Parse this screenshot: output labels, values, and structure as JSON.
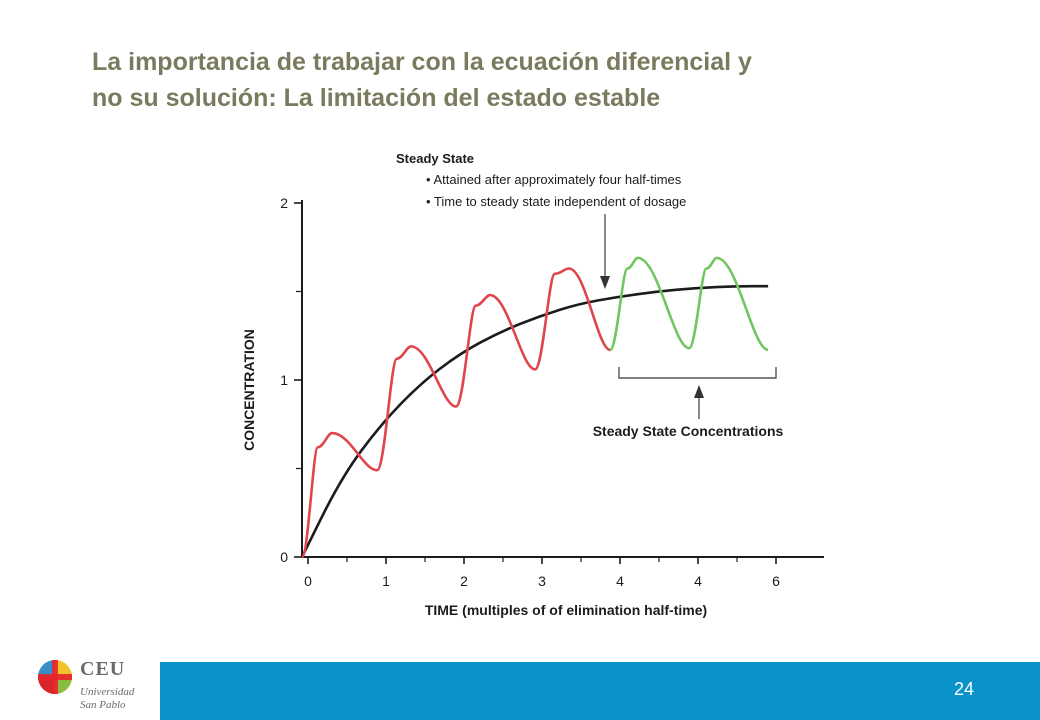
{
  "slide": {
    "title_line1": "La importancia de trabajar con la ecuación diferencial y",
    "title_line2": "no su solución: La limitación del estado estable",
    "page_number": "24"
  },
  "logo": {
    "name": "CEU",
    "line1": "Universidad",
    "line2": "San Pablo",
    "colors": [
      "#3a8ec7",
      "#f2c42b",
      "#8cbc3f",
      "#d8242a"
    ]
  },
  "colors": {
    "footer_bar": "#0a93c9",
    "title": "#7a7a5e",
    "dosing_curve": "#e0454c",
    "steady_state_curve": "#72c661",
    "average_curve": "#1c1c1c"
  },
  "chart_data": {
    "type": "line",
    "xlabel": "TIME (multiples of of elimination half-time)",
    "ylabel": "CONCENTRATION",
    "x_ticks": [
      "0",
      "1",
      "2",
      "3",
      "4",
      "4",
      "6"
    ],
    "y_ticks": [
      "0",
      "1",
      "2"
    ],
    "xlim": [
      0,
      6
    ],
    "ylim": [
      0,
      2
    ],
    "grid": false,
    "legend": "none",
    "series": [
      {
        "style": "smooth-black",
        "x": [
          0,
          0.5,
          1,
          1.5,
          2,
          2.5,
          3,
          3.5,
          4,
          4.5,
          5,
          5.5,
          5.9
        ],
        "y": [
          0,
          0.45,
          0.75,
          0.98,
          1.15,
          1.27,
          1.36,
          1.43,
          1.47,
          1.5,
          1.52,
          1.53,
          1.53
        ]
      },
      {
        "style": "sawtooth-red",
        "x": [
          0,
          0.2,
          0.38,
          0.95,
          0.95,
          1.2,
          1.38,
          1.95,
          1.95,
          2.2,
          2.38,
          2.95,
          2.95,
          3.2,
          3.38,
          3.9
        ],
        "y": [
          0,
          0.62,
          0.7,
          0.49,
          0.49,
          1.12,
          1.19,
          0.85,
          0.85,
          1.42,
          1.48,
          1.06,
          1.06,
          1.6,
          1.63,
          1.17
        ]
      },
      {
        "style": "sawtooth-green",
        "x": [
          3.9,
          4.12,
          4.25,
          4.9,
          4.9,
          5.12,
          5.25,
          5.9
        ],
        "y": [
          1.17,
          1.63,
          1.69,
          1.18,
          1.18,
          1.63,
          1.69,
          1.17
        ]
      }
    ],
    "annotations": {
      "steady_state_title": "Steady State",
      "steady_state_point1": "• Attained after approximately four half-times",
      "steady_state_point2": "• Time to steady state independent of dosage",
      "steady_state_concentrations": "Steady State Concentrations"
    }
  }
}
